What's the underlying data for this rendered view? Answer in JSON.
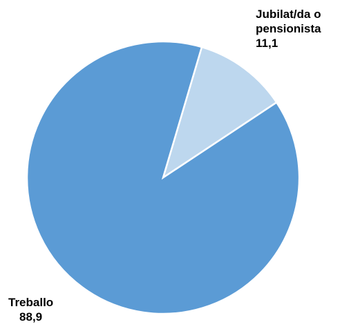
{
  "chart_data": {
    "type": "pie",
    "categories": [
      "Jubilat/da o pensionista",
      "Treballo"
    ],
    "values": [
      11.1,
      88.9
    ],
    "value_labels": [
      "11,1",
      "88,9"
    ],
    "colors": [
      "#bdd7ee",
      "#5b9bd5"
    ]
  }
}
